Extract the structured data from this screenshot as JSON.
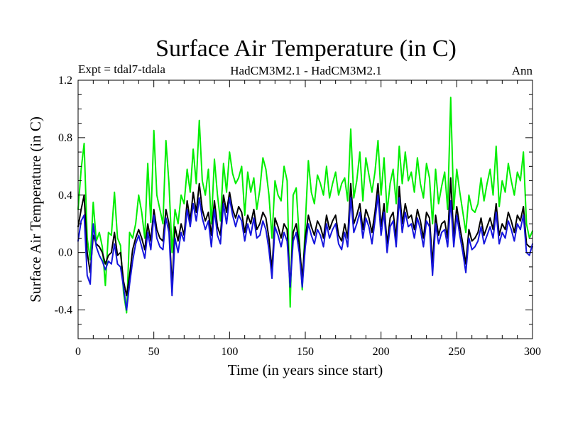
{
  "chart_data": {
    "type": "line",
    "title": "Surface Air Temperature (in C)",
    "subtitle_left": "Expt = tdal7-tdala",
    "subtitle_center": "HadCM3M2.1 - HadCM3M2.1",
    "subtitle_right": "Ann",
    "xlabel": "Time (in years since start)",
    "ylabel": "Surface Air Temperature (in C)",
    "xlim": [
      0,
      300
    ],
    "ylim": [
      -0.6,
      1.2
    ],
    "xticks": [
      0,
      50,
      100,
      150,
      200,
      250,
      300
    ],
    "xtick_labels": [
      "0",
      "50",
      "100",
      "150",
      "200",
      "250",
      "300"
    ],
    "yticks": [
      -0.4,
      0.0,
      0.4,
      0.8,
      1.2
    ],
    "ytick_labels": [
      "-0.4",
      "0.0",
      "0.4",
      "0.8",
      "1.2"
    ],
    "grid": false,
    "series": [
      {
        "name": "green",
        "color": "#00ee00",
        "x": [
          0,
          2,
          4,
          6,
          8,
          10,
          12,
          14,
          16,
          18,
          20,
          22,
          24,
          26,
          28,
          30,
          32,
          34,
          36,
          38,
          40,
          42,
          44,
          46,
          48,
          50,
          52,
          54,
          56,
          58,
          60,
          62,
          64,
          66,
          68,
          70,
          72,
          74,
          76,
          78,
          80,
          82,
          84,
          86,
          88,
          90,
          92,
          94,
          96,
          98,
          100,
          102,
          104,
          106,
          108,
          110,
          112,
          114,
          116,
          118,
          120,
          122,
          124,
          126,
          128,
          130,
          132,
          134,
          136,
          138,
          140,
          142,
          144,
          146,
          148,
          150,
          152,
          154,
          156,
          158,
          160,
          162,
          164,
          166,
          168,
          170,
          172,
          174,
          176,
          178,
          180,
          182,
          184,
          186,
          188,
          190,
          192,
          194,
          196,
          198,
          200,
          202,
          204,
          206,
          208,
          210,
          212,
          214,
          216,
          218,
          220,
          222,
          224,
          226,
          228,
          230,
          232,
          234,
          236,
          238,
          240,
          242,
          244,
          246,
          248,
          250,
          252,
          254,
          256,
          258,
          260,
          262,
          264,
          266,
          268,
          270,
          272,
          274,
          276,
          278,
          280,
          282,
          284,
          286,
          288,
          290,
          292,
          294,
          296,
          298,
          300
        ],
        "values": [
          0.3,
          0.58,
          0.76,
          0.1,
          -0.05,
          0.35,
          0.08,
          0.14,
          0.04,
          -0.23,
          0.14,
          0.12,
          0.42,
          0.1,
          0.05,
          -0.28,
          -0.42,
          0.14,
          0.1,
          0.2,
          0.4,
          0.28,
          0.1,
          0.62,
          0.21,
          0.85,
          0.4,
          0.3,
          0.2,
          0.78,
          0.48,
          0.0,
          0.3,
          0.2,
          0.4,
          0.34,
          0.58,
          0.42,
          0.72,
          0.48,
          0.92,
          0.5,
          0.4,
          0.58,
          0.2,
          0.65,
          0.4,
          0.22,
          0.62,
          0.42,
          0.7,
          0.55,
          0.48,
          0.52,
          0.6,
          0.26,
          0.56,
          0.42,
          0.52,
          0.3,
          0.44,
          0.66,
          0.58,
          0.4,
          0.1,
          0.5,
          0.4,
          0.36,
          0.6,
          0.5,
          -0.38,
          0.4,
          0.45,
          0.1,
          -0.26,
          0.2,
          0.64,
          0.42,
          0.34,
          0.54,
          0.48,
          0.4,
          0.6,
          0.38,
          0.48,
          0.56,
          0.4,
          0.48,
          0.52,
          0.36,
          0.86,
          0.38,
          0.5,
          0.7,
          0.36,
          0.66,
          0.54,
          0.42,
          0.56,
          0.78,
          0.4,
          0.66,
          0.28,
          0.48,
          0.58,
          0.34,
          0.74,
          0.48,
          0.7,
          0.5,
          0.56,
          0.42,
          0.66,
          0.48,
          0.38,
          0.62,
          0.52,
          0.2,
          0.58,
          0.34,
          0.46,
          0.56,
          0.3,
          1.08,
          0.3,
          0.58,
          0.42,
          0.28,
          0.14,
          0.4,
          0.3,
          0.28,
          0.34,
          0.52,
          0.36,
          0.48,
          0.58,
          0.4,
          0.74,
          0.32,
          0.5,
          0.42,
          0.62,
          0.5,
          0.4,
          0.56,
          0.5,
          0.7,
          0.2,
          0.1,
          0.15
        ]
      },
      {
        "name": "black",
        "color": "#000000",
        "x": [
          0,
          2,
          4,
          6,
          8,
          10,
          12,
          14,
          16,
          18,
          20,
          22,
          24,
          26,
          28,
          30,
          32,
          34,
          36,
          38,
          40,
          42,
          44,
          46,
          48,
          50,
          52,
          54,
          56,
          58,
          60,
          62,
          64,
          66,
          68,
          70,
          72,
          74,
          76,
          78,
          80,
          82,
          84,
          86,
          88,
          90,
          92,
          94,
          96,
          98,
          100,
          102,
          104,
          106,
          108,
          110,
          112,
          114,
          116,
          118,
          120,
          122,
          124,
          126,
          128,
          130,
          132,
          134,
          136,
          138,
          140,
          142,
          144,
          146,
          148,
          150,
          152,
          154,
          156,
          158,
          160,
          162,
          164,
          166,
          168,
          170,
          172,
          174,
          176,
          178,
          180,
          182,
          184,
          186,
          188,
          190,
          192,
          194,
          196,
          198,
          200,
          202,
          204,
          206,
          208,
          210,
          212,
          214,
          216,
          218,
          220,
          222,
          224,
          226,
          228,
          230,
          232,
          234,
          236,
          238,
          240,
          242,
          244,
          246,
          248,
          250,
          252,
          254,
          256,
          258,
          260,
          262,
          264,
          266,
          268,
          270,
          272,
          274,
          276,
          278,
          280,
          282,
          284,
          286,
          288,
          290,
          292,
          294,
          296,
          298,
          300
        ],
        "values": [
          0.18,
          0.3,
          0.4,
          0.0,
          -0.14,
          0.12,
          0.06,
          0.04,
          0.0,
          -0.08,
          -0.02,
          0.0,
          0.14,
          -0.02,
          0.0,
          -0.2,
          -0.3,
          -0.16,
          0.02,
          0.1,
          0.16,
          0.1,
          0.02,
          0.2,
          0.08,
          0.3,
          0.16,
          0.1,
          0.08,
          0.3,
          0.2,
          -0.24,
          0.18,
          0.08,
          0.2,
          0.12,
          0.36,
          0.22,
          0.42,
          0.28,
          0.48,
          0.3,
          0.22,
          0.28,
          0.12,
          0.36,
          0.18,
          0.12,
          0.4,
          0.28,
          0.42,
          0.3,
          0.24,
          0.32,
          0.28,
          0.14,
          0.26,
          0.2,
          0.3,
          0.16,
          0.2,
          0.28,
          0.24,
          0.1,
          -0.12,
          0.24,
          0.18,
          0.1,
          0.2,
          0.16,
          -0.24,
          0.14,
          0.2,
          0.06,
          -0.18,
          0.1,
          0.26,
          0.18,
          0.12,
          0.22,
          0.18,
          0.1,
          0.26,
          0.16,
          0.22,
          0.26,
          0.12,
          0.08,
          0.2,
          0.1,
          0.48,
          0.2,
          0.26,
          0.34,
          0.16,
          0.3,
          0.24,
          0.14,
          0.28,
          0.48,
          0.18,
          0.34,
          0.06,
          0.24,
          0.28,
          0.1,
          0.46,
          0.2,
          0.34,
          0.24,
          0.26,
          0.16,
          0.3,
          0.22,
          0.1,
          0.28,
          0.24,
          -0.08,
          0.26,
          0.12,
          0.2,
          0.22,
          0.1,
          0.52,
          0.1,
          0.32,
          0.18,
          0.06,
          -0.08,
          0.16,
          0.08,
          0.1,
          0.14,
          0.24,
          0.12,
          0.18,
          0.24,
          0.16,
          0.34,
          0.12,
          0.2,
          0.16,
          0.28,
          0.22,
          0.14,
          0.26,
          0.22,
          0.32,
          0.06,
          0.04,
          0.04
        ]
      },
      {
        "name": "blue",
        "color": "#1515dd",
        "x": [
          0,
          2,
          4,
          6,
          8,
          10,
          12,
          14,
          16,
          18,
          20,
          22,
          24,
          26,
          28,
          30,
          32,
          34,
          36,
          38,
          40,
          42,
          44,
          46,
          48,
          50,
          52,
          54,
          56,
          58,
          60,
          62,
          64,
          66,
          68,
          70,
          72,
          74,
          76,
          78,
          80,
          82,
          84,
          86,
          88,
          90,
          92,
          94,
          96,
          98,
          100,
          102,
          104,
          106,
          108,
          110,
          112,
          114,
          116,
          118,
          120,
          122,
          124,
          126,
          128,
          130,
          132,
          134,
          136,
          138,
          140,
          142,
          144,
          146,
          148,
          150,
          152,
          154,
          156,
          158,
          160,
          162,
          164,
          166,
          168,
          170,
          172,
          174,
          176,
          178,
          180,
          182,
          184,
          186,
          188,
          190,
          192,
          194,
          196,
          198,
          200,
          202,
          204,
          206,
          208,
          210,
          212,
          214,
          216,
          218,
          220,
          222,
          224,
          226,
          228,
          230,
          232,
          234,
          236,
          238,
          240,
          242,
          244,
          246,
          248,
          250,
          252,
          254,
          256,
          258,
          260,
          262,
          264,
          266,
          268,
          270,
          272,
          274,
          276,
          278,
          280,
          282,
          284,
          286,
          288,
          290,
          292,
          294,
          296,
          298,
          300
        ],
        "values": [
          0.08,
          0.22,
          0.26,
          -0.16,
          -0.22,
          0.2,
          0.04,
          -0.02,
          -0.06,
          -0.12,
          -0.06,
          -0.08,
          0.06,
          -0.08,
          -0.1,
          -0.24,
          -0.4,
          -0.22,
          -0.06,
          0.06,
          0.12,
          0.04,
          -0.04,
          0.14,
          0.02,
          0.26,
          0.1,
          0.04,
          0.02,
          0.24,
          0.14,
          -0.3,
          0.1,
          0.0,
          0.14,
          0.08,
          0.3,
          0.18,
          0.34,
          0.22,
          0.38,
          0.24,
          0.16,
          0.22,
          0.04,
          0.3,
          0.12,
          0.06,
          0.34,
          0.2,
          0.38,
          0.26,
          0.18,
          0.26,
          0.22,
          0.08,
          0.2,
          0.12,
          0.24,
          0.1,
          0.12,
          0.22,
          0.16,
          0.02,
          -0.18,
          0.18,
          0.12,
          0.04,
          0.14,
          0.08,
          -0.24,
          0.08,
          0.14,
          0.0,
          -0.24,
          0.04,
          0.2,
          0.12,
          0.06,
          0.16,
          0.12,
          0.04,
          0.2,
          0.1,
          0.16,
          0.2,
          0.06,
          0.02,
          0.14,
          0.04,
          0.38,
          0.14,
          0.2,
          0.28,
          0.1,
          0.24,
          0.18,
          0.06,
          0.22,
          0.4,
          0.12,
          0.28,
          0.0,
          0.18,
          0.22,
          0.04,
          0.38,
          0.14,
          0.28,
          0.18,
          0.2,
          0.1,
          0.24,
          0.16,
          0.04,
          0.22,
          0.18,
          -0.16,
          0.2,
          0.06,
          0.14,
          0.16,
          0.04,
          0.36,
          0.04,
          0.26,
          0.12,
          0.0,
          -0.14,
          0.1,
          0.02,
          0.04,
          0.08,
          0.18,
          0.06,
          0.12,
          0.18,
          0.1,
          0.28,
          0.06,
          0.14,
          0.1,
          0.22,
          0.16,
          0.08,
          0.2,
          0.16,
          0.26,
          0.0,
          -0.02,
          0.06
        ]
      }
    ]
  }
}
